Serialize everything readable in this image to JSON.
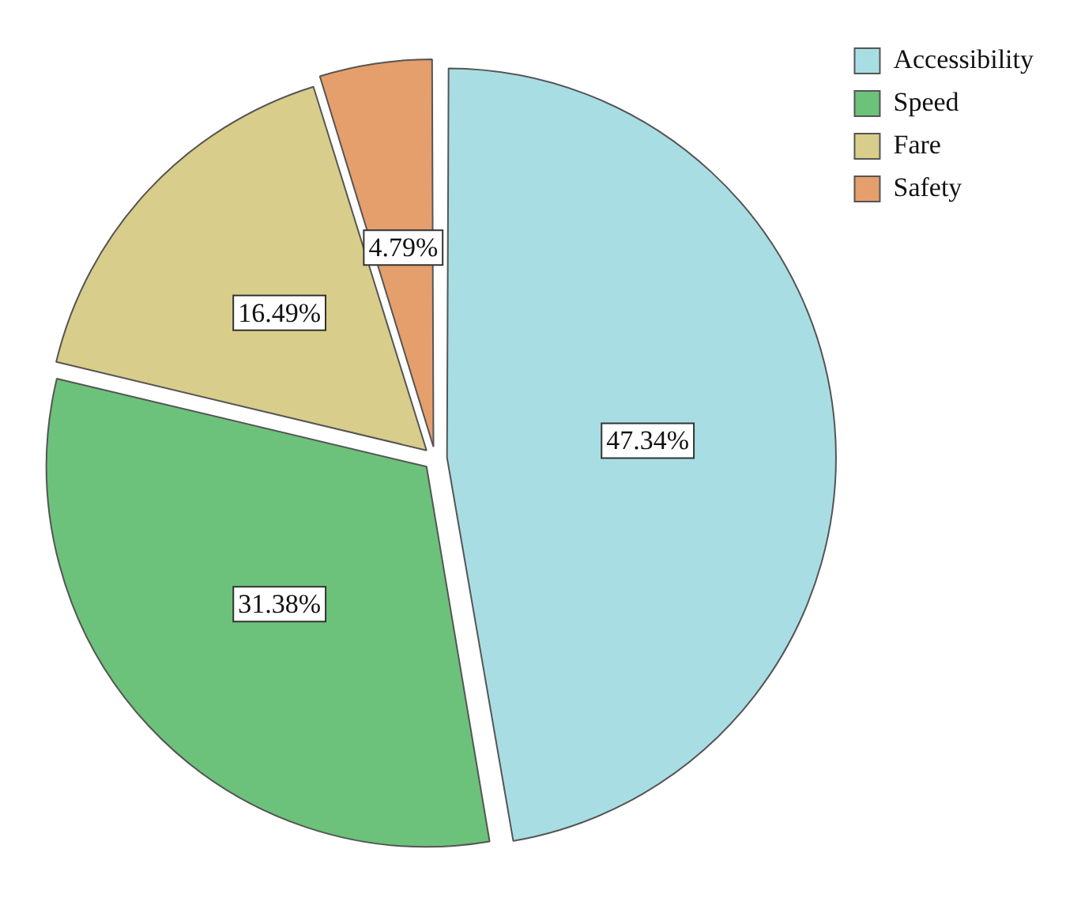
{
  "chart_data": {
    "type": "pie",
    "categories": [
      "Accessibility",
      "Speed",
      "Fare",
      "Safety"
    ],
    "values": [
      47.34,
      31.38,
      16.49,
      4.79
    ],
    "colors": [
      "#a9dde4",
      "#6cc27a",
      "#d8cd8a",
      "#e49f6c"
    ],
    "value_labels": [
      "47.34%",
      "31.38%",
      "16.49%",
      "4.79%"
    ],
    "legend": "top right"
  }
}
